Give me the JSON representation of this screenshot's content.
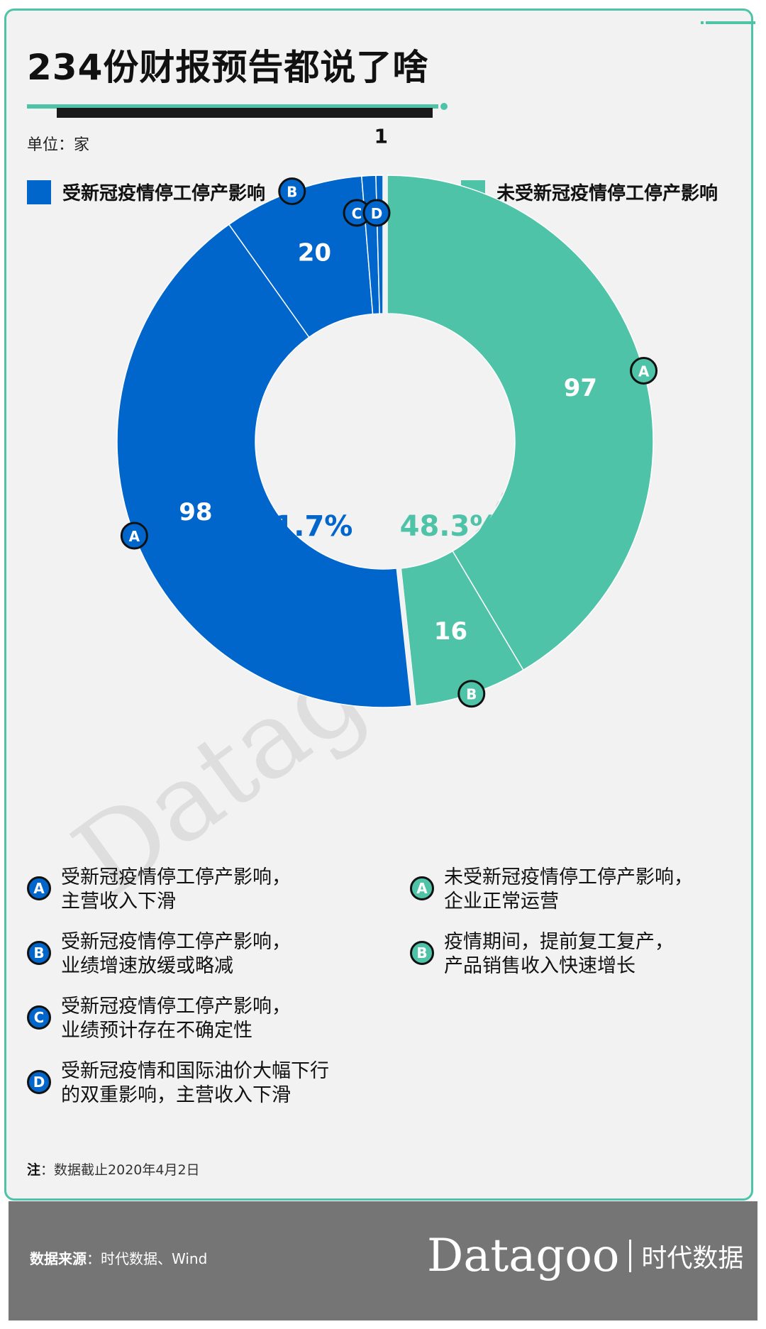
{
  "title": "234份财报预告都说了啥",
  "unit": "单位：家",
  "legend": {
    "affected": "受新冠疫情停工停产影响",
    "unaffected": "未受新冠疫情停工停产影响"
  },
  "colors": {
    "affected": "#0066cc",
    "unaffected": "#4ec3a8",
    "card": "#f2f2f2"
  },
  "chart_data": {
    "type": "pie",
    "variant": "donut",
    "total": 234,
    "groups": [
      {
        "label": "受新冠疫情停工停产影响",
        "percent": "51.7%",
        "color": "#0066cc"
      },
      {
        "label": "未受新冠疫情停工停产影响",
        "percent": "48.3%",
        "color": "#4ec3a8"
      }
    ],
    "slices": [
      {
        "group": "unaffected",
        "key": "A",
        "value": 97,
        "label": "97",
        "color": "#4ec3a8"
      },
      {
        "group": "unaffected",
        "key": "B",
        "value": 16,
        "label": "16",
        "color": "#4ec3a8"
      },
      {
        "group": "affected",
        "key": "A",
        "value": 98,
        "label": "98",
        "color": "#0066cc"
      },
      {
        "group": "affected",
        "key": "B",
        "value": 20,
        "label": "20",
        "color": "#0066cc"
      },
      {
        "group": "affected",
        "key": "C",
        "value": 2,
        "label": "2",
        "color": "#0066cc"
      },
      {
        "group": "affected",
        "key": "D",
        "value": 1,
        "label": "1",
        "color": "#0066cc"
      }
    ]
  },
  "notes": {
    "affected": [
      {
        "marker": "A",
        "text": "受新冠疫情停工停产影响，\n主营收入下滑"
      },
      {
        "marker": "B",
        "text": "受新冠疫情停工停产影响，\n业绩增速放缓或略减"
      },
      {
        "marker": "C",
        "text": "受新冠疫情停工停产影响，\n业绩预计存在不确定性"
      },
      {
        "marker": "D",
        "text": "受新冠疫情和国际油价大幅下行\n的双重影响，主营收入下滑"
      }
    ],
    "unaffected": [
      {
        "marker": "A",
        "text": "未受新冠疫情停工停产影响，\n企业正常运营"
      },
      {
        "marker": "B",
        "text": "疫情期间，提前复工复产，\n产品销售收入快速增长"
      }
    ]
  },
  "footnote": {
    "prefix": "注",
    "text": "：数据截止2020年4月2日"
  },
  "source": {
    "prefix": "数据来源",
    "text": "：时代数据、Wind"
  },
  "brand": {
    "en": "Datagoo",
    "cn": "时代数据"
  },
  "watermark": {
    "en": "Datagoo",
    "cn": "时代数据"
  }
}
